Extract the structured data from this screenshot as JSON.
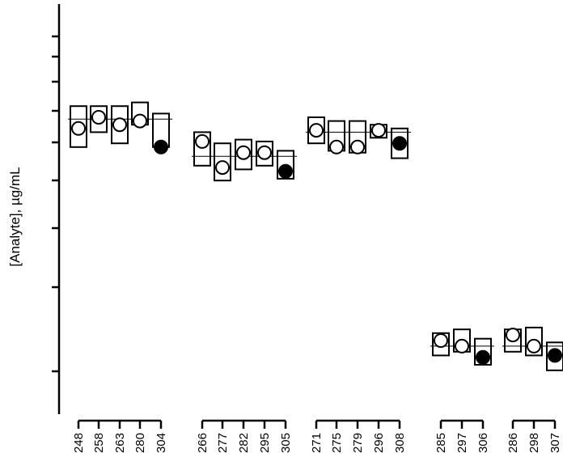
{
  "chart_data": {
    "type": "scatter",
    "title": "",
    "xlabel": "",
    "ylabel": "[Analyte], µg/mL",
    "y_tick_labels_shown": false,
    "legend": "none",
    "grid": false,
    "groups": [
      {
        "mean": 0.745,
        "samples": [
          {
            "label": "248",
            "value": 0.72,
            "box": [
              0.67,
              0.78
            ],
            "marker": "open"
          },
          {
            "label": "258",
            "value": 0.75,
            "box": [
              0.71,
              0.78
            ],
            "marker": "open"
          },
          {
            "label": "263",
            "value": 0.73,
            "box": [
              0.68,
              0.78
            ],
            "marker": "open"
          },
          {
            "label": "280",
            "value": 0.74,
            "box": [
              0.73,
              0.79
            ],
            "marker": "open"
          },
          {
            "label": "304",
            "value": 0.67,
            "box": [
              0.67,
              0.76
            ],
            "marker": "filled"
          }
        ]
      },
      {
        "mean": 0.645,
        "samples": [
          {
            "label": "266",
            "value": 0.685,
            "box": [
              0.62,
              0.71
            ],
            "marker": "open"
          },
          {
            "label": "277",
            "value": 0.615,
            "box": [
              0.58,
              0.68
            ],
            "marker": "open"
          },
          {
            "label": "282",
            "value": 0.655,
            "box": [
              0.61,
              0.69
            ],
            "marker": "open"
          },
          {
            "label": "295",
            "value": 0.655,
            "box": [
              0.62,
              0.685
            ],
            "marker": "open"
          },
          {
            "label": "305",
            "value": 0.605,
            "box": [
              0.585,
              0.66
            ],
            "marker": "filled"
          }
        ]
      },
      {
        "mean": 0.71,
        "samples": [
          {
            "label": "271",
            "value": 0.715,
            "box": [
              0.68,
              0.75
            ],
            "marker": "open"
          },
          {
            "label": "275",
            "value": 0.67,
            "box": [
              0.66,
              0.74
            ],
            "marker": "open"
          },
          {
            "label": "279",
            "value": 0.67,
            "box": [
              0.655,
              0.74
            ],
            "marker": "open"
          },
          {
            "label": "296",
            "value": 0.715,
            "box": [
              0.695,
              0.73
            ],
            "marker": "open"
          },
          {
            "label": "308",
            "value": 0.68,
            "box": [
              0.64,
              0.72
            ],
            "marker": "filled"
          }
        ]
      },
      {
        "mean": 0.135,
        "samples": [
          {
            "label": "285",
            "value": 0.15,
            "box": [
              0.11,
              0.17
            ],
            "marker": "open"
          },
          {
            "label": "297",
            "value": 0.135,
            "box": [
              0.12,
              0.18
            ],
            "marker": "open"
          },
          {
            "label": "306",
            "value": 0.105,
            "box": [
              0.085,
              0.155
            ],
            "marker": "filled"
          }
        ]
      },
      {
        "mean": 0.135,
        "samples": [
          {
            "label": "286",
            "value": 0.165,
            "box": [
              0.12,
              0.18
            ],
            "marker": "open"
          },
          {
            "label": "298",
            "value": 0.135,
            "box": [
              0.11,
              0.185
            ],
            "marker": "open"
          },
          {
            "label": "307",
            "value": 0.11,
            "box": [
              0.07,
              0.145
            ],
            "marker": "filled"
          }
        ]
      }
    ]
  }
}
